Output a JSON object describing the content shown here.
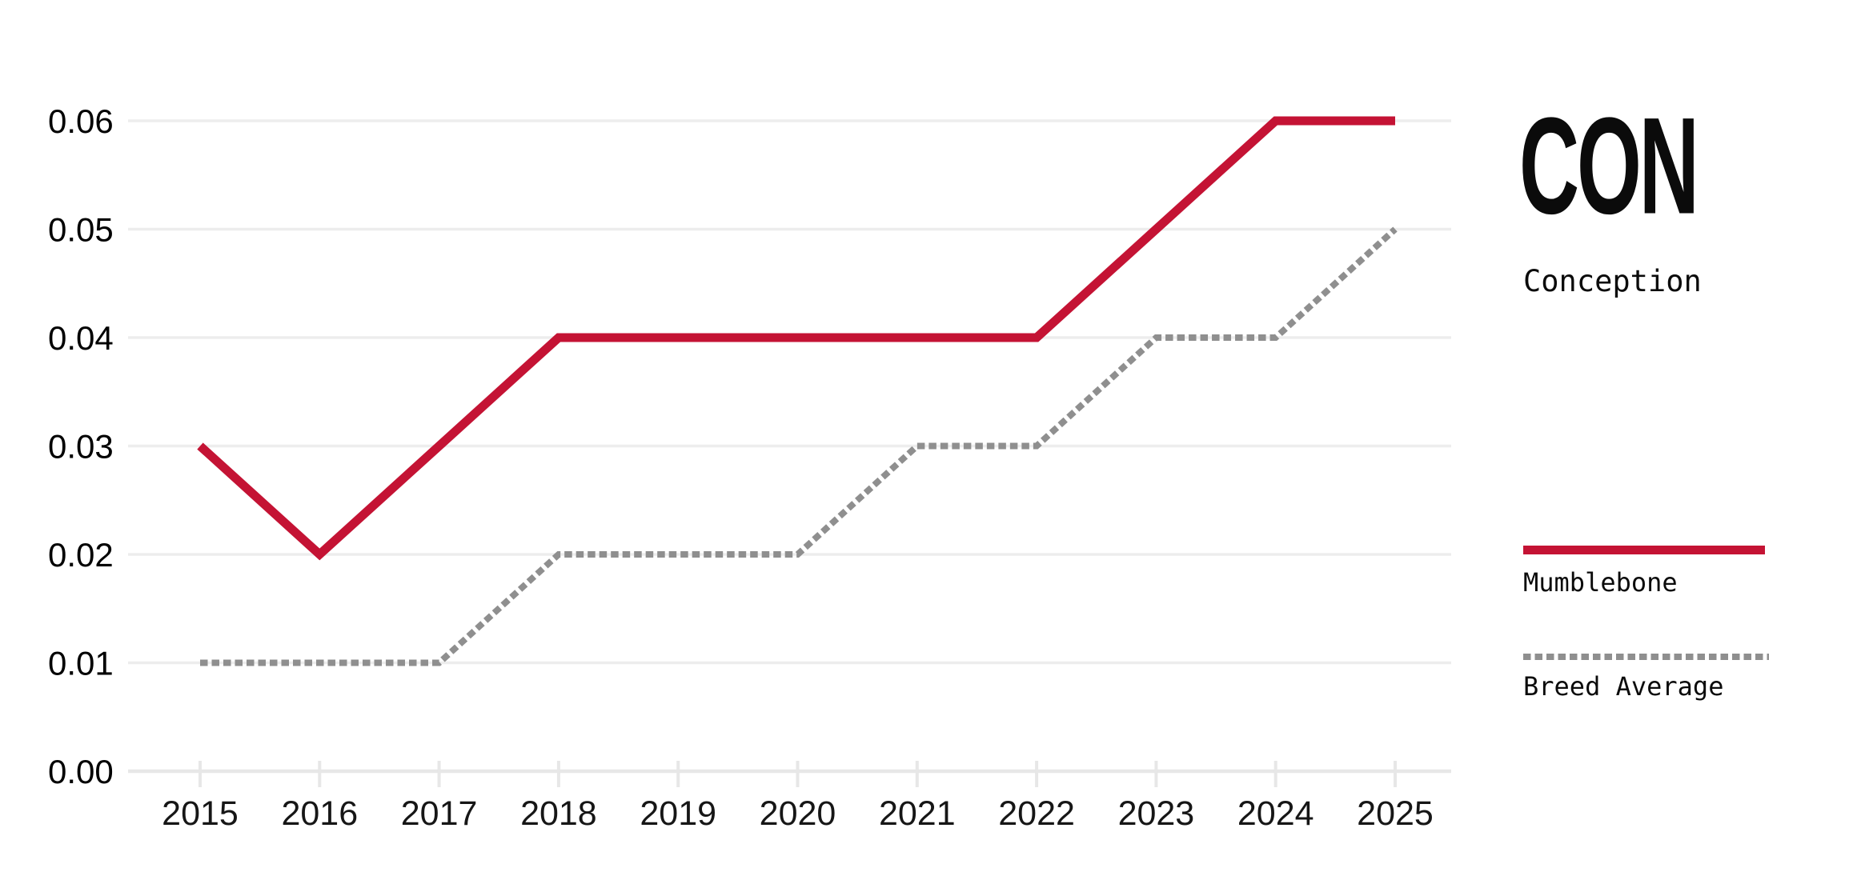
{
  "chart_data": {
    "type": "line",
    "title": "CON",
    "subtitle": "Conception",
    "x": [
      2015,
      2016,
      2017,
      2018,
      2019,
      2020,
      2021,
      2022,
      2023,
      2024,
      2025
    ],
    "series": [
      {
        "name": "Mumblebone",
        "values": [
          0.03,
          0.02,
          0.03,
          0.04,
          0.04,
          0.04,
          0.04,
          0.04,
          0.05,
          0.06,
          0.06
        ],
        "color": "#C41334",
        "line_style": "solid",
        "stroke_width": 11
      },
      {
        "name": "Breed Average",
        "values": [
          0.01,
          0.01,
          0.01,
          0.02,
          0.02,
          0.02,
          0.03,
          0.03,
          0.04,
          0.04,
          0.05
        ],
        "color": "#8F8F8F",
        "line_style": "dotted",
        "stroke_width": 8
      }
    ],
    "xlabel": "",
    "ylabel": "",
    "ylim": [
      0,
      0.06
    ],
    "ytick_step": 0.01,
    "ytick_decimals": 2,
    "ytick_labels": [
      "0.00",
      "0.01",
      "0.02",
      "0.03",
      "0.04",
      "0.05",
      "0.06"
    ],
    "grid": true,
    "legend_position": "right",
    "colors": {
      "gridline": "#EDEDED",
      "axis": "#E7E7E7",
      "y_tick_label": "#000000",
      "x_tick_label": "#161616",
      "background": "#FFFFFF"
    }
  }
}
